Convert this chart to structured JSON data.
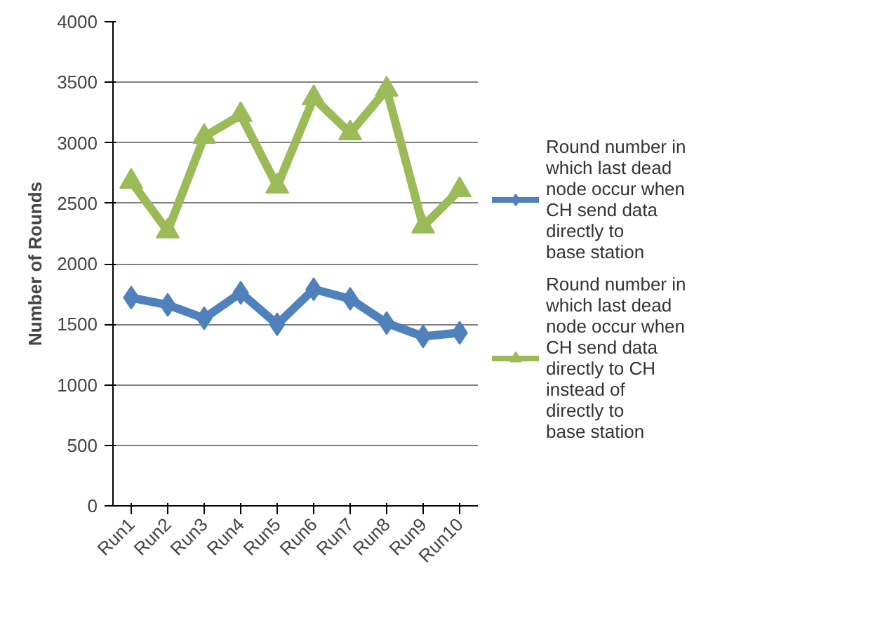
{
  "chart_data": {
    "type": "line",
    "ylabel": "Number of Rounds",
    "categories": [
      "Run1",
      "Run2",
      "Run3",
      "Run4",
      "Run5",
      "Run6",
      "Run7",
      "Run8",
      "Run9",
      "Run10"
    ],
    "series": [
      {
        "name": "Round number in which last dead node occur when CH send data directly to base station",
        "color": "#4f81bd",
        "marker": "diamond",
        "values": [
          1720,
          1660,
          1550,
          1760,
          1500,
          1790,
          1710,
          1510,
          1400,
          1430
        ]
      },
      {
        "name": "Round number in which last dead node occur when CH send data directly to CH instead of directly to base station",
        "color": "#9bbb59",
        "marker": "triangle",
        "values": [
          2680,
          2270,
          3050,
          3230,
          2640,
          3370,
          3080,
          3440,
          2310,
          2610
        ]
      }
    ],
    "ylim": [
      0,
      4000
    ],
    "yticks": [
      0,
      500,
      1000,
      1500,
      2000,
      2500,
      3000,
      3500,
      4000
    ],
    "grid": "y",
    "legend": "right"
  }
}
